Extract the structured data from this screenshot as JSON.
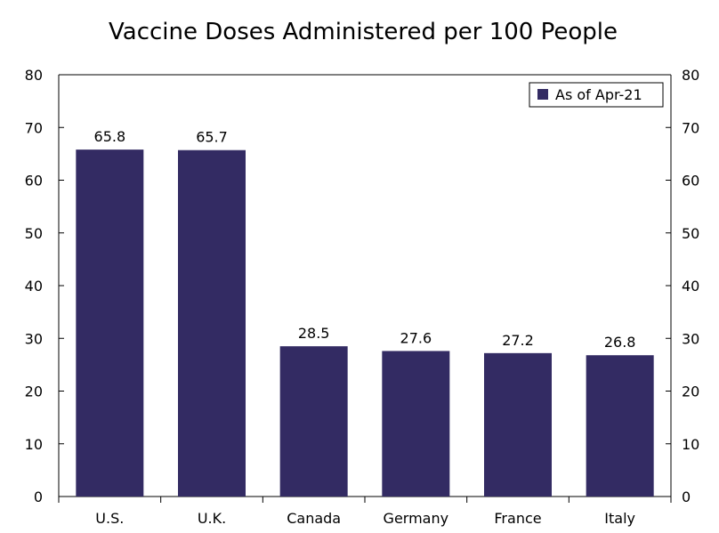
{
  "chart_data": {
    "type": "bar",
    "title": "Vaccine Doses Administered per 100 People",
    "categories": [
      "U.S.",
      "U.K.",
      "Canada",
      "Germany",
      "France",
      "Italy"
    ],
    "series": [
      {
        "name": "As of Apr-21",
        "values": [
          65.8,
          65.7,
          28.5,
          27.6,
          27.2,
          26.8
        ]
      }
    ],
    "data_labels": [
      "65.8",
      "65.7",
      "28.5",
      "27.6",
      "27.2",
      "26.8"
    ],
    "ylim": [
      0,
      80
    ],
    "yticks": [
      0,
      10,
      20,
      30,
      40,
      50,
      60,
      70,
      80
    ],
    "ytick_labels": [
      "0",
      "10",
      "20",
      "30",
      "40",
      "50",
      "60",
      "70",
      "80"
    ],
    "xlabel": "",
    "ylabel": "",
    "legend_position": "top-right",
    "grid": false,
    "dual_y_axis": true,
    "colors": {
      "bar": "#332b63",
      "axis": "#000000",
      "text": "#000000"
    }
  }
}
